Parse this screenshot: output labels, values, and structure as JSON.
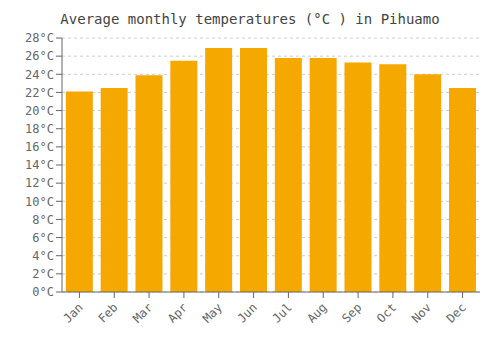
{
  "chart_data": {
    "type": "bar",
    "title": "Average monthly temperatures (°C ) in Pihuamo",
    "categories": [
      "Jan",
      "Feb",
      "Mar",
      "Apr",
      "May",
      "Jun",
      "Jul",
      "Aug",
      "Sep",
      "Oct",
      "Nov",
      "Dec"
    ],
    "values": [
      22.1,
      22.5,
      23.9,
      25.5,
      26.9,
      26.9,
      25.8,
      25.8,
      25.3,
      25.1,
      24.0,
      22.5
    ],
    "color": "#F5A800",
    "ylim": [
      0,
      28
    ],
    "yticks": [
      {
        "value": 0,
        "label": "0°C"
      },
      {
        "value": 2,
        "label": "2°C"
      },
      {
        "value": 4,
        "label": "4°C"
      },
      {
        "value": 6,
        "label": "6°C"
      },
      {
        "value": 8,
        "label": "8°C"
      },
      {
        "value": 10,
        "label": "10°C"
      },
      {
        "value": 12,
        "label": "12°C"
      },
      {
        "value": 14,
        "label": "14°C"
      },
      {
        "value": 16,
        "label": "16°C"
      },
      {
        "value": 18,
        "label": "18°C"
      },
      {
        "value": 20,
        "label": "20°C"
      },
      {
        "value": 22,
        "label": "22°C"
      },
      {
        "value": 24,
        "label": "24°C"
      },
      {
        "value": 26,
        "label": "26°C"
      },
      {
        "value": 28,
        "label": "28°C"
      }
    ],
    "grid": true
  }
}
